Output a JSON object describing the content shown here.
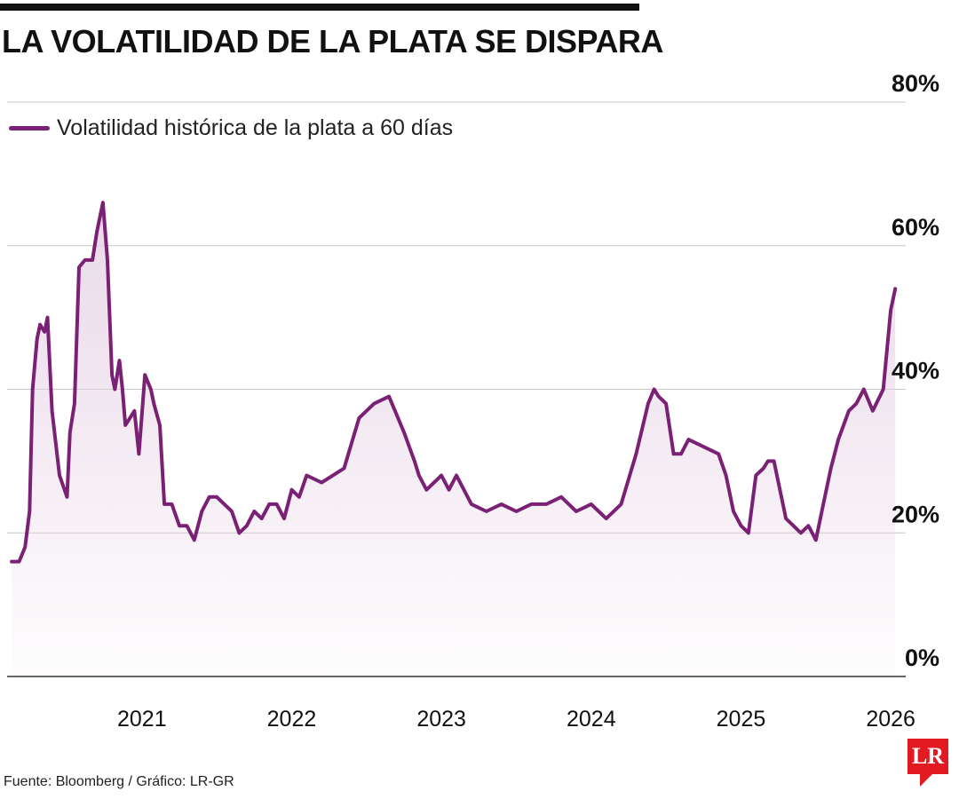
{
  "header": {
    "title": "LA VOLATILIDAD DE LA PLATA SE DISPARA"
  },
  "legend": {
    "label": "Volatilidad histórica de la plata a 60 días"
  },
  "footer": {
    "source": "Fuente: Bloomberg / Gráfico: LR-GR",
    "logo_text": "LR"
  },
  "colors": {
    "line": "#7b2175",
    "fill": "#e6d2e4",
    "grid": "#c8c8c8",
    "axis": "#333333",
    "logo": "#e21b23"
  },
  "chart_data": {
    "type": "area",
    "title": "LA VOLATILIDAD DE LA PLATA SE DISPARA",
    "xlabel": "",
    "ylabel": "",
    "y_tick_labels": [
      "80%",
      "60%",
      "40%",
      "20%",
      "0%"
    ],
    "y_tick_values": [
      80,
      60,
      40,
      20,
      0
    ],
    "x_tick_labels": [
      "2021",
      "2022",
      "2023",
      "2024",
      "2025",
      "2026"
    ],
    "x_tick_values": [
      2021,
      2022,
      2023,
      2024,
      2025,
      2026
    ],
    "xlim": [
      2020.1,
      2026.1
    ],
    "ylim": [
      0,
      80
    ],
    "grid": true,
    "legend_position": "top-left",
    "series": [
      {
        "name": "Volatilidad histórica de la plata a 60 días",
        "x": [
          2020.13,
          2020.18,
          2020.22,
          2020.25,
          2020.27,
          2020.3,
          2020.32,
          2020.35,
          2020.37,
          2020.4,
          2020.45,
          2020.5,
          2020.52,
          2020.55,
          2020.58,
          2020.62,
          2020.67,
          2020.7,
          2020.74,
          2020.77,
          2020.8,
          2020.82,
          2020.85,
          2020.87,
          2020.89,
          2020.95,
          2020.98,
          2021.02,
          2021.06,
          2021.08,
          2021.12,
          2021.15,
          2021.2,
          2021.25,
          2021.3,
          2021.35,
          2021.4,
          2021.45,
          2021.5,
          2021.6,
          2021.65,
          2021.7,
          2021.75,
          2021.8,
          2021.85,
          2021.9,
          2021.95,
          2022.0,
          2022.05,
          2022.1,
          2022.2,
          2022.35,
          2022.45,
          2022.55,
          2022.65,
          2022.75,
          2022.82,
          2022.85,
          2022.9,
          2023.0,
          2023.05,
          2023.1,
          2023.2,
          2023.3,
          2023.4,
          2023.5,
          2023.6,
          2023.7,
          2023.8,
          2023.9,
          2024.0,
          2024.05,
          2024.1,
          2024.2,
          2024.3,
          2024.38,
          2024.42,
          2024.45,
          2024.5,
          2024.55,
          2024.6,
          2024.65,
          2024.75,
          2024.85,
          2024.9,
          2024.95,
          2025.0,
          2025.05,
          2025.1,
          2025.15,
          2025.18,
          2025.22,
          2025.3,
          2025.35,
          2025.4,
          2025.45,
          2025.5,
          2025.55,
          2025.6,
          2025.65,
          2025.72,
          2025.77,
          2025.82,
          2025.88,
          2025.95,
          2026.0,
          2026.03
        ],
        "values": [
          16,
          16,
          18,
          23,
          40,
          47,
          49,
          48,
          50,
          37,
          28,
          25,
          34,
          38,
          57,
          58,
          58,
          62,
          66,
          58,
          42,
          40,
          44,
          40,
          35,
          37,
          31,
          42,
          40,
          38,
          35,
          24,
          24,
          21,
          21,
          19,
          23,
          25,
          25,
          23,
          20,
          21,
          23,
          22,
          24,
          24,
          22,
          26,
          25,
          28,
          27,
          29,
          36,
          38,
          39,
          34,
          30,
          28,
          26,
          28,
          26,
          28,
          24,
          23,
          24,
          23,
          24,
          24,
          25,
          23,
          24,
          23,
          22,
          24,
          31,
          38,
          40,
          39,
          38,
          31,
          31,
          33,
          32,
          31,
          28,
          23,
          21,
          20,
          28,
          29,
          30,
          30,
          22,
          21,
          20,
          21,
          19,
          24,
          29,
          33,
          37,
          38,
          40,
          37,
          40,
          51,
          54
        ]
      }
    ]
  }
}
